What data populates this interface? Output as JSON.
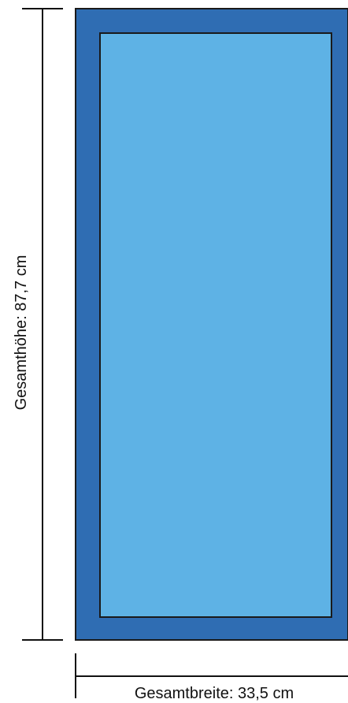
{
  "dimensions": {
    "height_label": "Gesamthöhe: 87,7 cm",
    "width_label": "Gesamtbreite: 33,5 cm"
  },
  "colors": {
    "frame": "#2f6db3",
    "panel": "#5eb2e5",
    "outline": "#1a1a1a",
    "dimension_line": "#111111"
  }
}
